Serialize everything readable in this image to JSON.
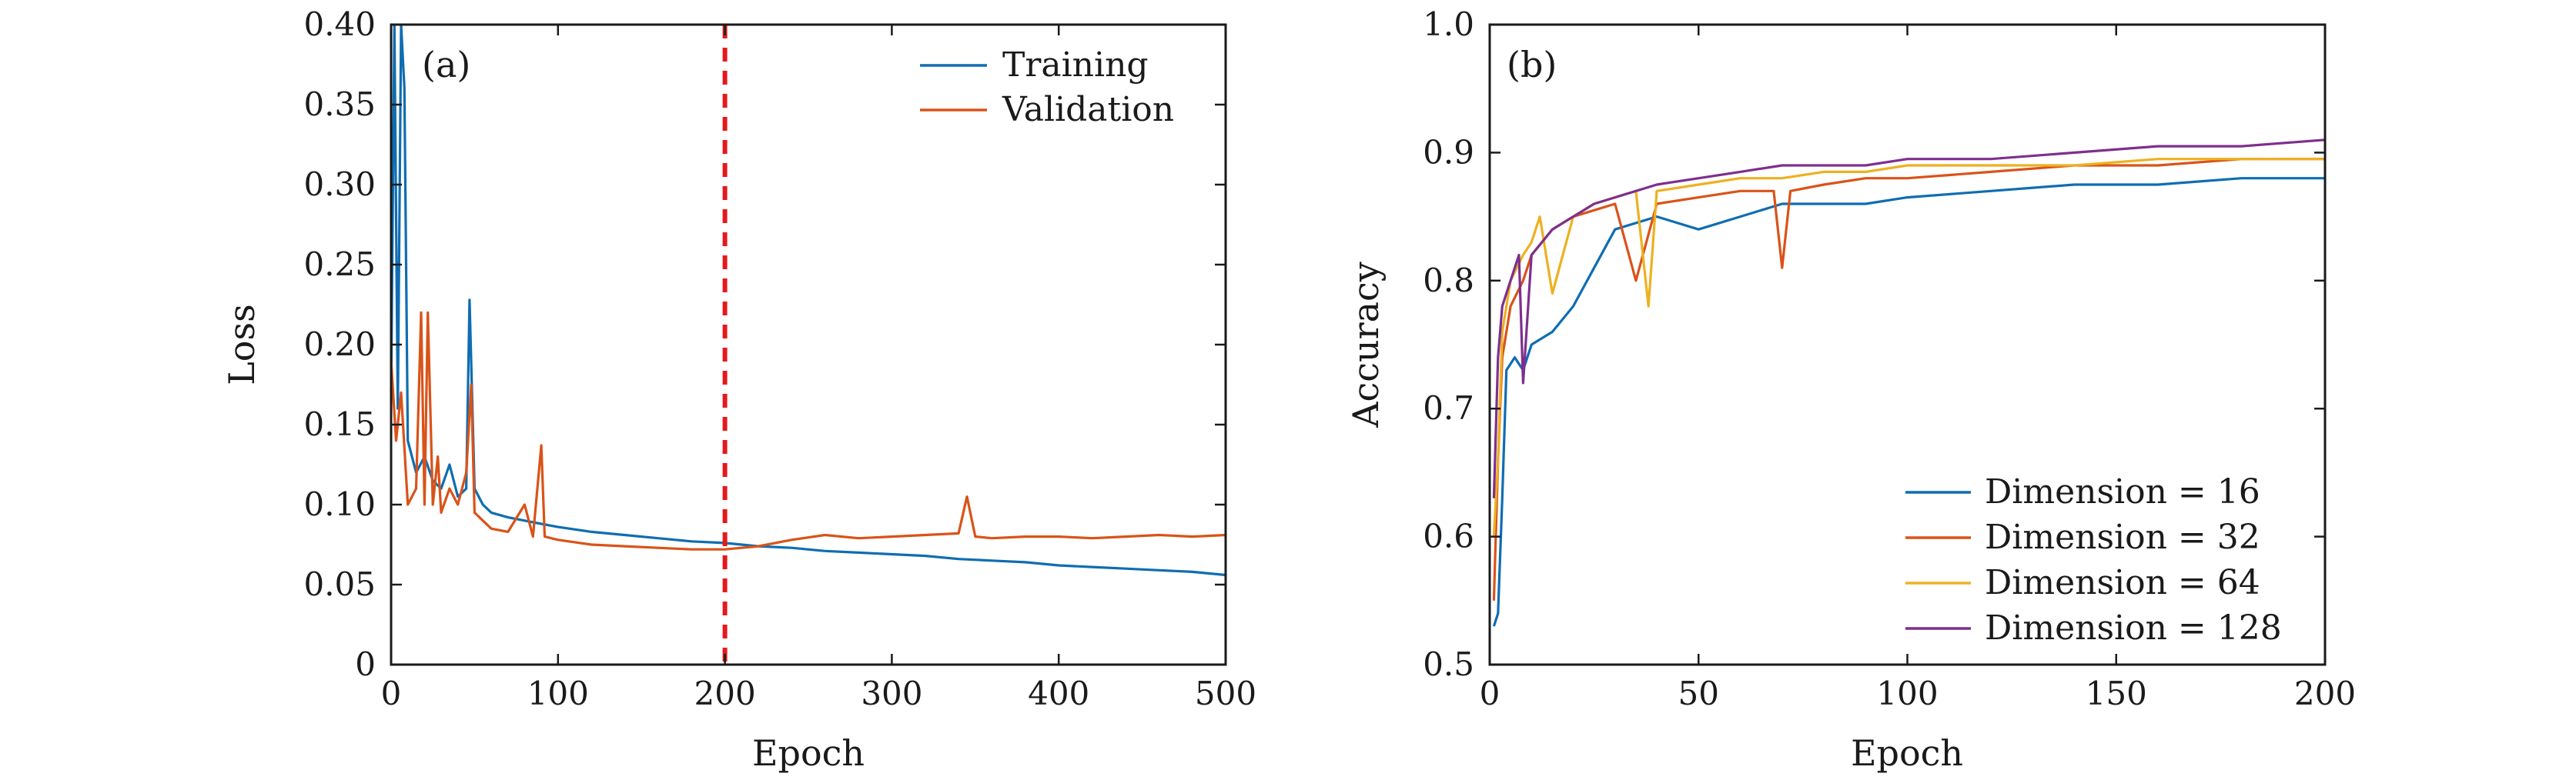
{
  "chart_data": [
    {
      "type": "line",
      "panel_label": "(a)",
      "xlabel": "Epoch",
      "ylabel": "Loss",
      "xlim": [
        0,
        500
      ],
      "ylim": [
        0,
        0.4
      ],
      "xticks": [
        0,
        100,
        200,
        300,
        400,
        500
      ],
      "xtick_labels": [
        "0",
        "100",
        "200",
        "300",
        "400",
        "500"
      ],
      "yticks": [
        0,
        0.05,
        0.1,
        0.15,
        0.2,
        0.25,
        0.3,
        0.35,
        0.4
      ],
      "ytick_labels": [
        "0",
        "0.05",
        "0.10",
        "0.15",
        "0.20",
        "0.25",
        "0.30",
        "0.35",
        "0.40"
      ],
      "legend_position": "top-right",
      "annotations": [
        {
          "type": "vertical-dashed-line",
          "x": 200,
          "color": "#e3191c"
        }
      ],
      "series": [
        {
          "name": "Training",
          "color": "#0f6db2",
          "x": [
            0,
            2,
            4,
            6,
            8,
            10,
            15,
            20,
            25,
            30,
            35,
            40,
            45,
            47,
            50,
            55,
            60,
            70,
            80,
            90,
            100,
            120,
            140,
            160,
            180,
            200,
            220,
            240,
            260,
            280,
            300,
            320,
            340,
            360,
            380,
            400,
            420,
            440,
            460,
            480,
            500
          ],
          "y": [
            0.17,
            0.4,
            0.16,
            0.4,
            0.36,
            0.14,
            0.12,
            0.13,
            0.115,
            0.11,
            0.125,
            0.105,
            0.11,
            0.228,
            0.11,
            0.1,
            0.095,
            0.092,
            0.09,
            0.088,
            0.086,
            0.083,
            0.081,
            0.079,
            0.077,
            0.076,
            0.074,
            0.073,
            0.071,
            0.07,
            0.069,
            0.068,
            0.066,
            0.065,
            0.064,
            0.062,
            0.061,
            0.06,
            0.059,
            0.058,
            0.056
          ]
        },
        {
          "name": "Validation",
          "color": "#d95319",
          "x": [
            0,
            3,
            6,
            10,
            15,
            18,
            20,
            22,
            25,
            28,
            30,
            35,
            40,
            45,
            48,
            50,
            55,
            60,
            70,
            80,
            85,
            90,
            92,
            100,
            120,
            140,
            160,
            180,
            200,
            220,
            240,
            260,
            280,
            300,
            320,
            340,
            345,
            350,
            360,
            380,
            400,
            420,
            440,
            460,
            480,
            500
          ],
          "y": [
            0.19,
            0.14,
            0.17,
            0.1,
            0.11,
            0.22,
            0.1,
            0.22,
            0.1,
            0.13,
            0.095,
            0.11,
            0.1,
            0.12,
            0.175,
            0.095,
            0.09,
            0.085,
            0.083,
            0.1,
            0.08,
            0.137,
            0.08,
            0.078,
            0.075,
            0.074,
            0.073,
            0.072,
            0.072,
            0.074,
            0.078,
            0.081,
            0.079,
            0.08,
            0.081,
            0.082,
            0.105,
            0.08,
            0.079,
            0.08,
            0.08,
            0.079,
            0.08,
            0.081,
            0.08,
            0.081
          ]
        }
      ]
    },
    {
      "type": "line",
      "panel_label": "(b)",
      "xlabel": "Epoch",
      "ylabel": "Accuracy",
      "xlim": [
        0,
        200
      ],
      "ylim": [
        0.5,
        1.0
      ],
      "xticks": [
        0,
        50,
        100,
        150,
        200
      ],
      "xtick_labels": [
        "0",
        "50",
        "100",
        "150",
        "200"
      ],
      "yticks": [
        0.5,
        0.6,
        0.7,
        0.8,
        0.9,
        1.0
      ],
      "ytick_labels": [
        "0.5",
        "0.6",
        "0.7",
        "0.8",
        "0.9",
        "1.0"
      ],
      "legend_position": "bottom-right",
      "series": [
        {
          "name": "Dimension = 16",
          "color": "#0f6db2",
          "x": [
            1,
            2,
            3,
            4,
            6,
            8,
            10,
            15,
            20,
            25,
            30,
            40,
            50,
            60,
            70,
            80,
            90,
            100,
            120,
            140,
            160,
            180,
            200
          ],
          "y": [
            0.53,
            0.54,
            0.63,
            0.73,
            0.74,
            0.73,
            0.75,
            0.76,
            0.78,
            0.81,
            0.84,
            0.85,
            0.84,
            0.85,
            0.86,
            0.86,
            0.86,
            0.865,
            0.87,
            0.875,
            0.875,
            0.88,
            0.88
          ]
        },
        {
          "name": "Dimension = 32",
          "color": "#d95319",
          "x": [
            1,
            2,
            3,
            5,
            8,
            10,
            15,
            20,
            25,
            30,
            35,
            40,
            50,
            60,
            68,
            70,
            72,
            80,
            90,
            100,
            120,
            140,
            160,
            180,
            200
          ],
          "y": [
            0.55,
            0.66,
            0.74,
            0.78,
            0.8,
            0.82,
            0.84,
            0.85,
            0.855,
            0.86,
            0.8,
            0.86,
            0.865,
            0.87,
            0.87,
            0.81,
            0.87,
            0.875,
            0.88,
            0.88,
            0.885,
            0.89,
            0.89,
            0.895,
            0.895
          ]
        },
        {
          "name": "Dimension = 64",
          "color": "#edb120",
          "x": [
            1,
            2,
            3,
            5,
            8,
            10,
            12,
            15,
            20,
            25,
            30,
            35,
            38,
            40,
            50,
            60,
            70,
            80,
            90,
            100,
            120,
            140,
            160,
            180,
            200
          ],
          "y": [
            0.6,
            0.66,
            0.76,
            0.8,
            0.82,
            0.83,
            0.85,
            0.79,
            0.85,
            0.86,
            0.865,
            0.87,
            0.78,
            0.87,
            0.875,
            0.88,
            0.88,
            0.885,
            0.885,
            0.89,
            0.89,
            0.89,
            0.895,
            0.895,
            0.895
          ]
        },
        {
          "name": "Dimension = 128",
          "color": "#7e2f8e",
          "x": [
            1,
            2,
            3,
            5,
            7,
            8,
            10,
            15,
            20,
            25,
            30,
            40,
            50,
            60,
            70,
            80,
            90,
            100,
            120,
            140,
            160,
            180,
            200
          ],
          "y": [
            0.63,
            0.74,
            0.78,
            0.8,
            0.82,
            0.72,
            0.82,
            0.84,
            0.85,
            0.86,
            0.865,
            0.875,
            0.88,
            0.885,
            0.89,
            0.89,
            0.89,
            0.895,
            0.895,
            0.9,
            0.905,
            0.905,
            0.91
          ]
        }
      ]
    }
  ]
}
